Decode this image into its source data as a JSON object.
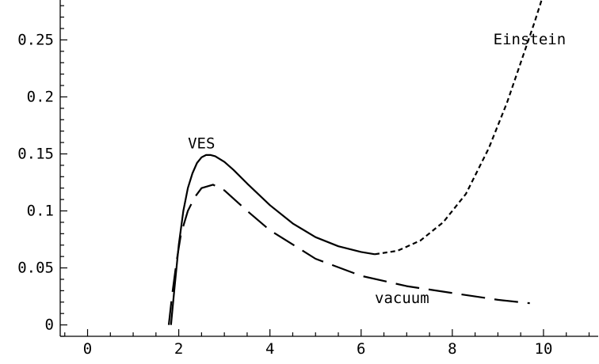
{
  "chart_data": {
    "type": "line",
    "title": "",
    "xlabel": "",
    "ylabel": "",
    "xlim": [
      -0.6,
      11.2
    ],
    "ylim": [
      -0.01,
      0.285
    ],
    "grid": false,
    "x_ticks": [
      0,
      2,
      4,
      6,
      8,
      10
    ],
    "x_tick_labels": [
      "0",
      "2",
      "4",
      "6",
      "8",
      "10"
    ],
    "y_ticks": [
      0,
      0.05,
      0.1,
      0.15,
      0.2,
      0.25
    ],
    "y_tick_labels": [
      "0",
      "0.05",
      "0.1",
      "0.15",
      "0.2",
      "0.25"
    ],
    "series": [
      {
        "name": "VES",
        "style": "solid",
        "x": [
          1.83,
          1.9,
          2.0,
          2.1,
          2.2,
          2.3,
          2.4,
          2.5,
          2.6,
          2.7,
          2.8,
          3.0,
          3.2,
          3.5,
          4.0,
          4.5,
          5.0,
          5.5,
          6.0,
          6.3
        ],
        "y": [
          0.0,
          0.03,
          0.07,
          0.1,
          0.12,
          0.133,
          0.142,
          0.147,
          0.149,
          0.149,
          0.148,
          0.143,
          0.136,
          0.124,
          0.105,
          0.089,
          0.077,
          0.069,
          0.064,
          0.062
        ]
      },
      {
        "name": "Einstein",
        "style": "dotted",
        "x": [
          6.3,
          6.8,
          7.3,
          7.8,
          8.3,
          8.8,
          9.2,
          9.5,
          9.8,
          10.0
        ],
        "y": [
          0.062,
          0.065,
          0.074,
          0.09,
          0.115,
          0.155,
          0.195,
          0.23,
          0.265,
          0.29
        ]
      },
      {
        "name": "vacuum",
        "style": "dashed",
        "x": [
          1.78,
          1.85,
          1.95,
          2.05,
          2.2,
          2.35,
          2.5,
          2.75,
          3.0,
          3.5,
          4.0,
          5.0,
          6.0,
          7.0,
          8.0,
          9.0,
          9.7
        ],
        "y": [
          0.0,
          0.025,
          0.055,
          0.08,
          0.1,
          0.112,
          0.12,
          0.123,
          0.118,
          0.1,
          0.083,
          0.058,
          0.043,
          0.034,
          0.028,
          0.022,
          0.019
        ]
      }
    ],
    "annotations": [
      {
        "text": "VES",
        "x": 2.2,
        "y": 0.155
      },
      {
        "text": "Einstein",
        "x": 8.9,
        "y": 0.246
      },
      {
        "text": "vacuum",
        "x": 6.3,
        "y": 0.019
      }
    ]
  }
}
